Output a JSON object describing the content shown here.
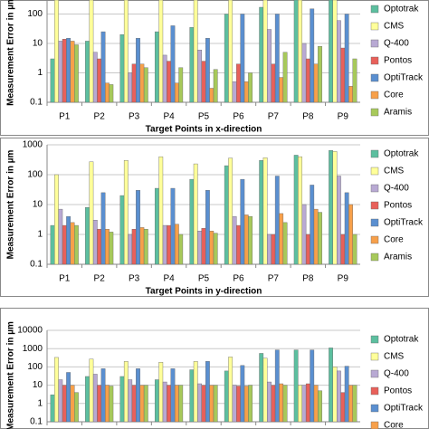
{
  "chart_data": [
    {
      "type": "bar",
      "y_label": "Measurement Error in µm",
      "x_label": "Target Points in x-direction",
      "log_scale": true,
      "grid": true,
      "categories": [
        "P1",
        "P2",
        "P3",
        "P4",
        "P5",
        "P6",
        "P7",
        "P8",
        "P9"
      ],
      "ylim": [
        0.1,
        300
      ],
      "yticks": [
        0.1,
        1,
        10,
        100
      ],
      "series": [
        {
          "name": "Optotrak",
          "color": "#5cbf9f",
          "values": [
            3,
            12,
            20,
            25,
            35,
            100,
            170,
            300,
            300
          ]
        },
        {
          "name": "CMS",
          "color": "#ffff99",
          "values": [
            300,
            300,
            300,
            300,
            300,
            300,
            300,
            300,
            300
          ]
        },
        {
          "name": "Q-400",
          "color": "#b8a9d3",
          "values": [
            12,
            5,
            1,
            4,
            6,
            0.5,
            30,
            10,
            60
          ]
        },
        {
          "name": "Pontos",
          "color": "#e8605a",
          "values": [
            14,
            3,
            2,
            2.5,
            2.5,
            2,
            2,
            3,
            7
          ]
        },
        {
          "name": "OptiTrack",
          "color": "#5a8fd0",
          "values": [
            15,
            25,
            15,
            40,
            15,
            100,
            100,
            150,
            100
          ]
        },
        {
          "name": "Core",
          "color": "#f7a04a",
          "values": [
            12,
            0.45,
            2,
            0.45,
            0.3,
            0.5,
            0.7,
            2,
            0.35
          ]
        },
        {
          "name": "Aramis",
          "color": "#a7c95a",
          "values": [
            9,
            0.4,
            1.5,
            1.5,
            1.3,
            1,
            5,
            8,
            3
          ]
        }
      ]
    },
    {
      "type": "bar",
      "y_label": "Measurement Error in µm",
      "x_label": "Target Points in y-direction",
      "log_scale": true,
      "grid": true,
      "categories": [
        "P1",
        "P2",
        "P3",
        "P4",
        "P5",
        "P6",
        "P7",
        "P8",
        "P9"
      ],
      "ylim": [
        0.1,
        1000
      ],
      "yticks": [
        0.1,
        1,
        10,
        100,
        1000
      ],
      "series": [
        {
          "name": "Optotrak",
          "color": "#5cbf9f",
          "values": [
            2,
            8,
            20,
            35,
            70,
            200,
            300,
            450,
            650
          ]
        },
        {
          "name": "CMS",
          "color": "#ffff99",
          "values": [
            100,
            270,
            300,
            400,
            230,
            360,
            370,
            400,
            600
          ]
        },
        {
          "name": "Q-400",
          "color": "#b8a9d3",
          "values": [
            7,
            3,
            1,
            2,
            1.3,
            4,
            1,
            10,
            90
          ]
        },
        {
          "name": "Pontos",
          "color": "#e8605a",
          "values": [
            2,
            1.5,
            1.5,
            2,
            1.6,
            2,
            1,
            1,
            1
          ]
        },
        {
          "name": "OptiTrack",
          "color": "#5a8fd0",
          "values": [
            4,
            25,
            30,
            35,
            30,
            70,
            90,
            45,
            25
          ]
        },
        {
          "name": "Core",
          "color": "#f7a04a",
          "values": [
            2.5,
            1.5,
            1.7,
            2.2,
            1.3,
            4.5,
            5,
            7,
            10
          ]
        },
        {
          "name": "Aramis",
          "color": "#a7c95a",
          "values": [
            2,
            1.2,
            1.5,
            1,
            1.1,
            4,
            2.5,
            5.5,
            1
          ]
        }
      ]
    },
    {
      "type": "bar",
      "y_label": "Measurement Error in µm",
      "log_scale": true,
      "grid": true,
      "categories": [
        null,
        null,
        null,
        null,
        null,
        null,
        null,
        null,
        null
      ],
      "ylim": [
        0.1,
        10000
      ],
      "yticks": [
        0.1,
        1,
        10,
        100,
        1000,
        10000
      ],
      "series": [
        {
          "name": "Optotrak",
          "color": "#5cbf9f",
          "values": [
            3,
            30,
            30,
            20,
            70,
            60,
            550,
            850,
            1100
          ]
        },
        {
          "name": "CMS",
          "color": "#ffff99",
          "values": [
            330,
            270,
            200,
            180,
            200,
            350,
            300,
            10,
            100
          ]
        },
        {
          "name": "Q-400",
          "color": "#b8a9d3",
          "values": [
            20,
            40,
            20,
            15,
            12,
            10,
            15,
            10,
            60
          ]
        },
        {
          "name": "Pontos",
          "color": "#e8605a",
          "values": [
            10,
            10,
            10,
            10,
            10,
            9,
            10,
            12,
            4
          ]
        },
        {
          "name": "OptiTrack",
          "color": "#5a8fd0",
          "values": [
            50,
            80,
            80,
            80,
            200,
            120,
            850,
            850,
            110
          ]
        },
        {
          "name": "Core",
          "color": "#f7a04a",
          "values": [
            10,
            10,
            10,
            10,
            10,
            9,
            12,
            10,
            10
          ]
        },
        {
          "name": "Aramis",
          "color": "#a7c95a",
          "values": [
            4,
            9,
            10,
            10,
            10,
            10,
            10,
            5,
            10
          ]
        }
      ]
    }
  ]
}
